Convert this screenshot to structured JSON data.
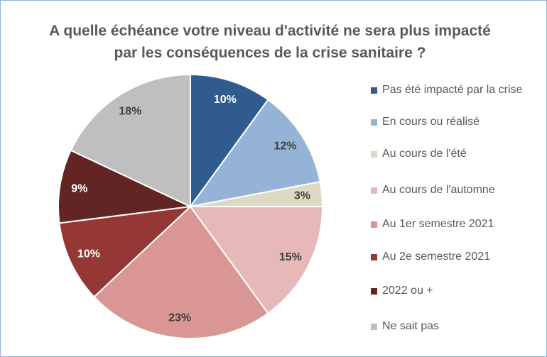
{
  "chart_data": {
    "type": "pie",
    "title": "A quelle échéance votre niveau d'activité ne sera plus impacté par les conséquences de la crise sanitaire ?",
    "categories": [
      "Pas été impacté par la crise",
      "En cours ou réalisé",
      "Au cours de l'été",
      "Au cours de l'automne",
      "Au 1er semestre 2021",
      "Au 2e semestre 2021",
      "2022 ou +",
      "Ne sait pas"
    ],
    "values": [
      10,
      12,
      3,
      15,
      23,
      10,
      9,
      18
    ],
    "value_labels": [
      "10%",
      "12%",
      "3%",
      "15%",
      "23%",
      "10%",
      "9%",
      "18%"
    ],
    "colors": [
      "#2f5b8f",
      "#95b3d7",
      "#ddd9c3",
      "#e6b9b8",
      "#d99694",
      "#953735",
      "#632523",
      "#bfbfbf"
    ],
    "legend": "right"
  }
}
